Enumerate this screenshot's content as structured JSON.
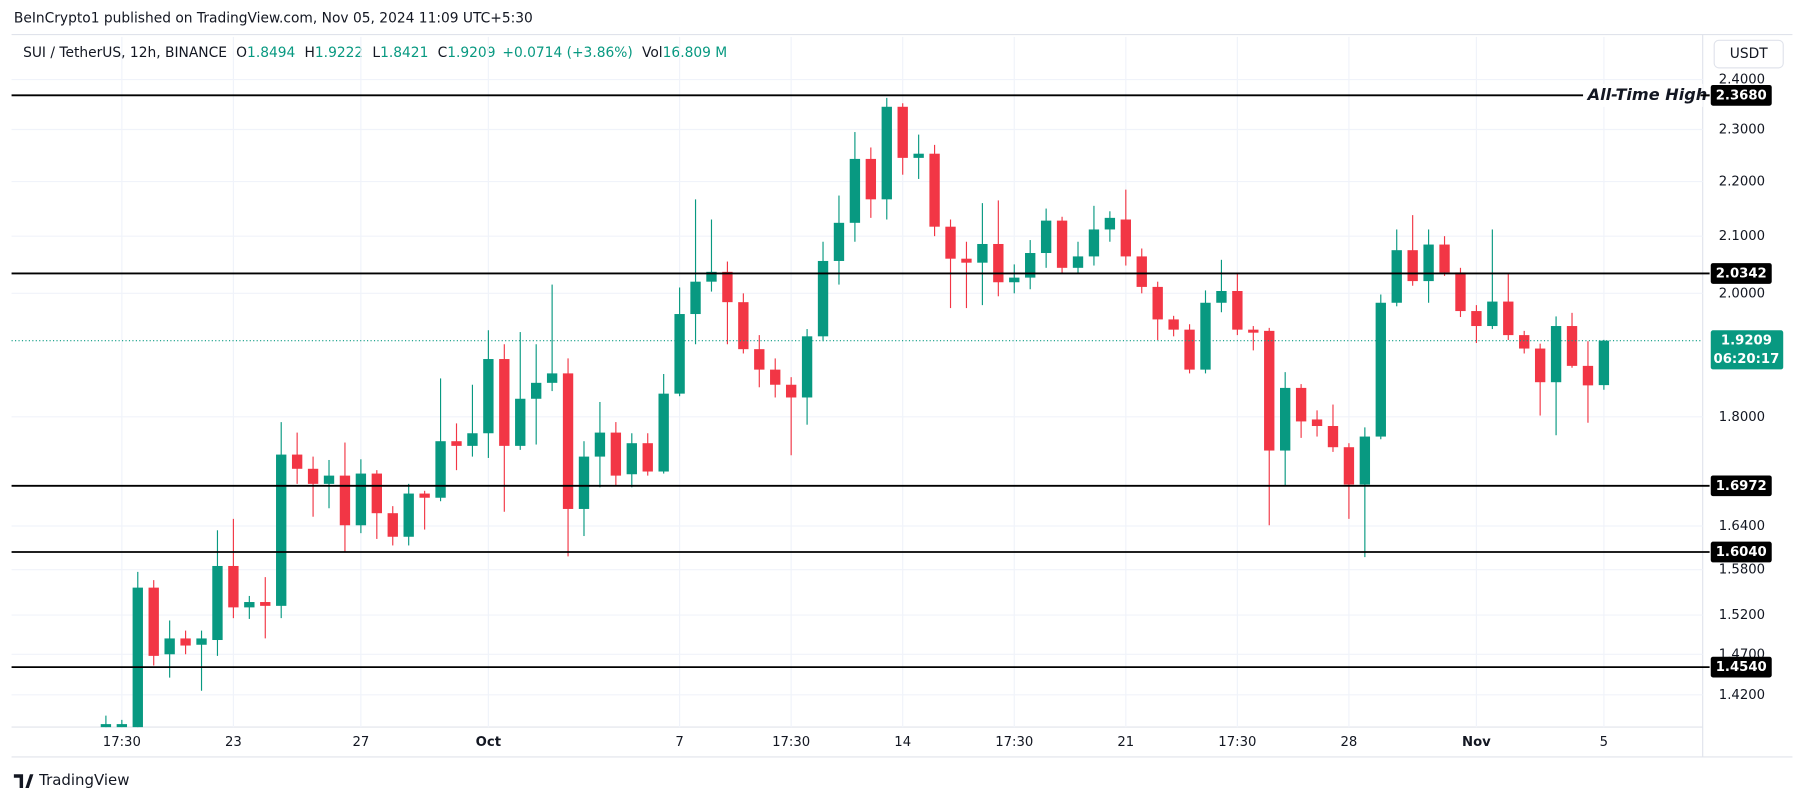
{
  "chart_data": {
    "type": "candlestick",
    "publisher_line": "BeInCrypto1 published on TradingView.com, Nov 05, 2024 11:09 UTC+5:30",
    "title": "SUI / TetherUS, 12h, BINANCE",
    "ohlc_labels": [
      "O",
      "H",
      "L",
      "C"
    ],
    "change": "+0.0714 (+3.86%)",
    "volume_label": "Vol",
    "volume": "16.809 M",
    "currency": "USDT",
    "brand": "TradingView",
    "up_color": "#089981",
    "down_color": "#f23645",
    "log_scale": true,
    "grid": true,
    "open": [
      1.375,
      1.37,
      1.36,
      1.556,
      1.47,
      1.49,
      1.482,
      1.488,
      1.585,
      1.53,
      1.537,
      1.532,
      1.743,
      1.722,
      1.7,
      1.712,
      1.641,
      1.715,
      1.658,
      1.625,
      1.686,
      1.68,
      1.763,
      1.756,
      1.775,
      1.891,
      1.756,
      1.828,
      1.853,
      1.868,
      1.664,
      1.74,
      1.776,
      1.714,
      1.76,
      1.718,
      1.836,
      1.965,
      2.02,
      2.037,
      1.985,
      1.907,
      1.874,
      1.85,
      1.83,
      1.928,
      2.056,
      2.124,
      2.243,
      2.167,
      2.345,
      2.245,
      2.253,
      2.117,
      2.06,
      2.053,
      2.086,
      2.019,
      2.027,
      2.07,
      2.128,
      2.044,
      2.064,
      2.112,
      2.13,
      2.064,
      2.011,
      1.956,
      1.939,
      1.874,
      1.984,
      2.004,
      1.939,
      1.937,
      1.749,
      1.845,
      1.796,
      1.786,
      1.754,
      1.699,
      1.77,
      1.984,
      2.075,
      2.021,
      2.085,
      2.036,
      1.97,
      1.945,
      1.986,
      1.93,
      1.908,
      1.854,
      1.945,
      1.88,
      1.8494
    ],
    "high": [
      1.395,
      1.39,
      1.577,
      1.566,
      1.513,
      1.5,
      1.5,
      1.634,
      1.65,
      1.545,
      1.57,
      1.792,
      1.776,
      1.74,
      1.735,
      1.761,
      1.736,
      1.72,
      1.668,
      1.7,
      1.69,
      1.86,
      1.79,
      1.85,
      1.938,
      1.915,
      1.935,
      1.915,
      2.015,
      1.892,
      1.763,
      1.823,
      1.792,
      1.775,
      1.775,
      1.867,
      2.01,
      2.167,
      2.13,
      2.055,
      2.0,
      1.93,
      1.892,
      1.862,
      1.94,
      2.09,
      2.174,
      2.295,
      2.265,
      2.363,
      2.352,
      2.29,
      2.27,
      2.13,
      2.09,
      2.16,
      2.165,
      2.05,
      2.093,
      2.15,
      2.135,
      2.09,
      2.155,
      2.145,
      2.185,
      2.078,
      2.02,
      1.962,
      1.948,
      2.005,
      2.058,
      2.035,
      1.945,
      1.942,
      1.87,
      1.851,
      1.81,
      1.819,
      1.76,
      1.784,
      1.998,
      2.112,
      2.138,
      2.112,
      2.1,
      2.044,
      1.98,
      2.112,
      2.035,
      1.937,
      1.916,
      1.961,
      1.967,
      1.92,
      1.9222
    ],
    "low": [
      1.37,
      1.36,
      1.34,
      1.456,
      1.441,
      1.47,
      1.425,
      1.468,
      1.516,
      1.515,
      1.49,
      1.516,
      1.7,
      1.653,
      1.665,
      1.604,
      1.63,
      1.622,
      1.613,
      1.613,
      1.635,
      1.675,
      1.72,
      1.74,
      1.738,
      1.66,
      1.75,
      1.758,
      1.84,
      1.598,
      1.626,
      1.695,
      1.697,
      1.695,
      1.712,
      1.715,
      1.832,
      1.915,
      2.003,
      1.915,
      1.9,
      1.846,
      1.83,
      1.742,
      1.788,
      1.92,
      2.015,
      2.09,
      2.133,
      2.13,
      2.213,
      2.205,
      2.1,
      1.975,
      1.975,
      1.98,
      1.995,
      2.0,
      2.007,
      2.044,
      2.035,
      2.035,
      2.048,
      2.09,
      2.048,
      2.0,
      1.922,
      1.928,
      1.868,
      1.868,
      1.968,
      1.93,
      1.905,
      1.641,
      1.697,
      1.768,
      1.77,
      1.747,
      1.65,
      1.597,
      1.766,
      1.978,
      2.013,
      1.984,
      2.03,
      1.96,
      1.917,
      1.94,
      1.922,
      1.9,
      1.802,
      1.772,
      1.877,
      1.791,
      1.8421
    ],
    "close": [
      1.385,
      1.385,
      1.556,
      1.468,
      1.49,
      1.481,
      1.49,
      1.585,
      1.53,
      1.537,
      1.532,
      1.743,
      1.722,
      1.7,
      1.712,
      1.641,
      1.715,
      1.658,
      1.625,
      1.686,
      1.68,
      1.763,
      1.756,
      1.775,
      1.891,
      1.756,
      1.828,
      1.853,
      1.868,
      1.664,
      1.74,
      1.776,
      1.712,
      1.76,
      1.718,
      1.836,
      1.965,
      2.02,
      2.037,
      1.985,
      1.907,
      1.874,
      1.85,
      1.83,
      1.928,
      2.056,
      2.124,
      2.243,
      2.167,
      2.345,
      2.245,
      2.253,
      2.117,
      2.06,
      2.053,
      2.086,
      2.019,
      2.027,
      2.07,
      2.128,
      2.044,
      2.064,
      2.112,
      2.133,
      2.064,
      2.011,
      1.956,
      1.939,
      1.874,
      1.984,
      2.004,
      1.939,
      1.934,
      1.749,
      1.845,
      1.793,
      1.786,
      1.754,
      1.699,
      1.77,
      1.984,
      2.075,
      2.021,
      2.085,
      2.036,
      1.97,
      1.945,
      1.986,
      1.93,
      1.908,
      1.854,
      1.945,
      1.88,
      1.849,
      1.9209
    ],
    "ylim": [
      1.3815,
      2.417
    ],
    "yticks": [
      {
        "value": 2.4,
        "label": "2.4000"
      },
      {
        "value": 2.3,
        "label": "2.3000"
      },
      {
        "value": 2.2,
        "label": "2.2000"
      },
      {
        "value": 2.1,
        "label": "2.1000"
      },
      {
        "value": 2.0,
        "label": "2.0000"
      },
      {
        "value": 1.8,
        "label": "1.8000"
      },
      {
        "value": 1.64,
        "label": "1.6400"
      },
      {
        "value": 1.58,
        "label": "1.5800"
      },
      {
        "value": 1.52,
        "label": "1.5200"
      },
      {
        "value": 1.47,
        "label": "1.4700"
      },
      {
        "value": 1.42,
        "label": "1.4200"
      }
    ],
    "xlim": [
      -5.92,
      100.2
    ],
    "xticks": [
      {
        "value": 1,
        "label": "17:30"
      },
      {
        "value": 8,
        "label": "23"
      },
      {
        "value": 16,
        "label": "27"
      },
      {
        "value": 24,
        "label": "Oct"
      },
      {
        "value": 36,
        "label": "7"
      },
      {
        "value": 43,
        "label": "17:30"
      },
      {
        "value": 50,
        "label": "14"
      },
      {
        "value": 57,
        "label": "17:30"
      },
      {
        "value": 64,
        "label": "21"
      },
      {
        "value": 71,
        "label": "17:30"
      },
      {
        "value": 78,
        "label": "28"
      },
      {
        "value": 86,
        "label": "Nov"
      },
      {
        "value": 94,
        "label": "5"
      }
    ],
    "levels": [
      {
        "value": 2.368,
        "label": "2.3680"
      },
      {
        "value": 2.0342,
        "label": "2.0342"
      },
      {
        "value": 1.6972,
        "label": "1.6972"
      },
      {
        "value": 1.604,
        "label": "1.6040"
      },
      {
        "value": 1.454,
        "label": "1.4540"
      }
    ],
    "annotation": "All-Time High",
    "countdown": "06:20:17"
  }
}
